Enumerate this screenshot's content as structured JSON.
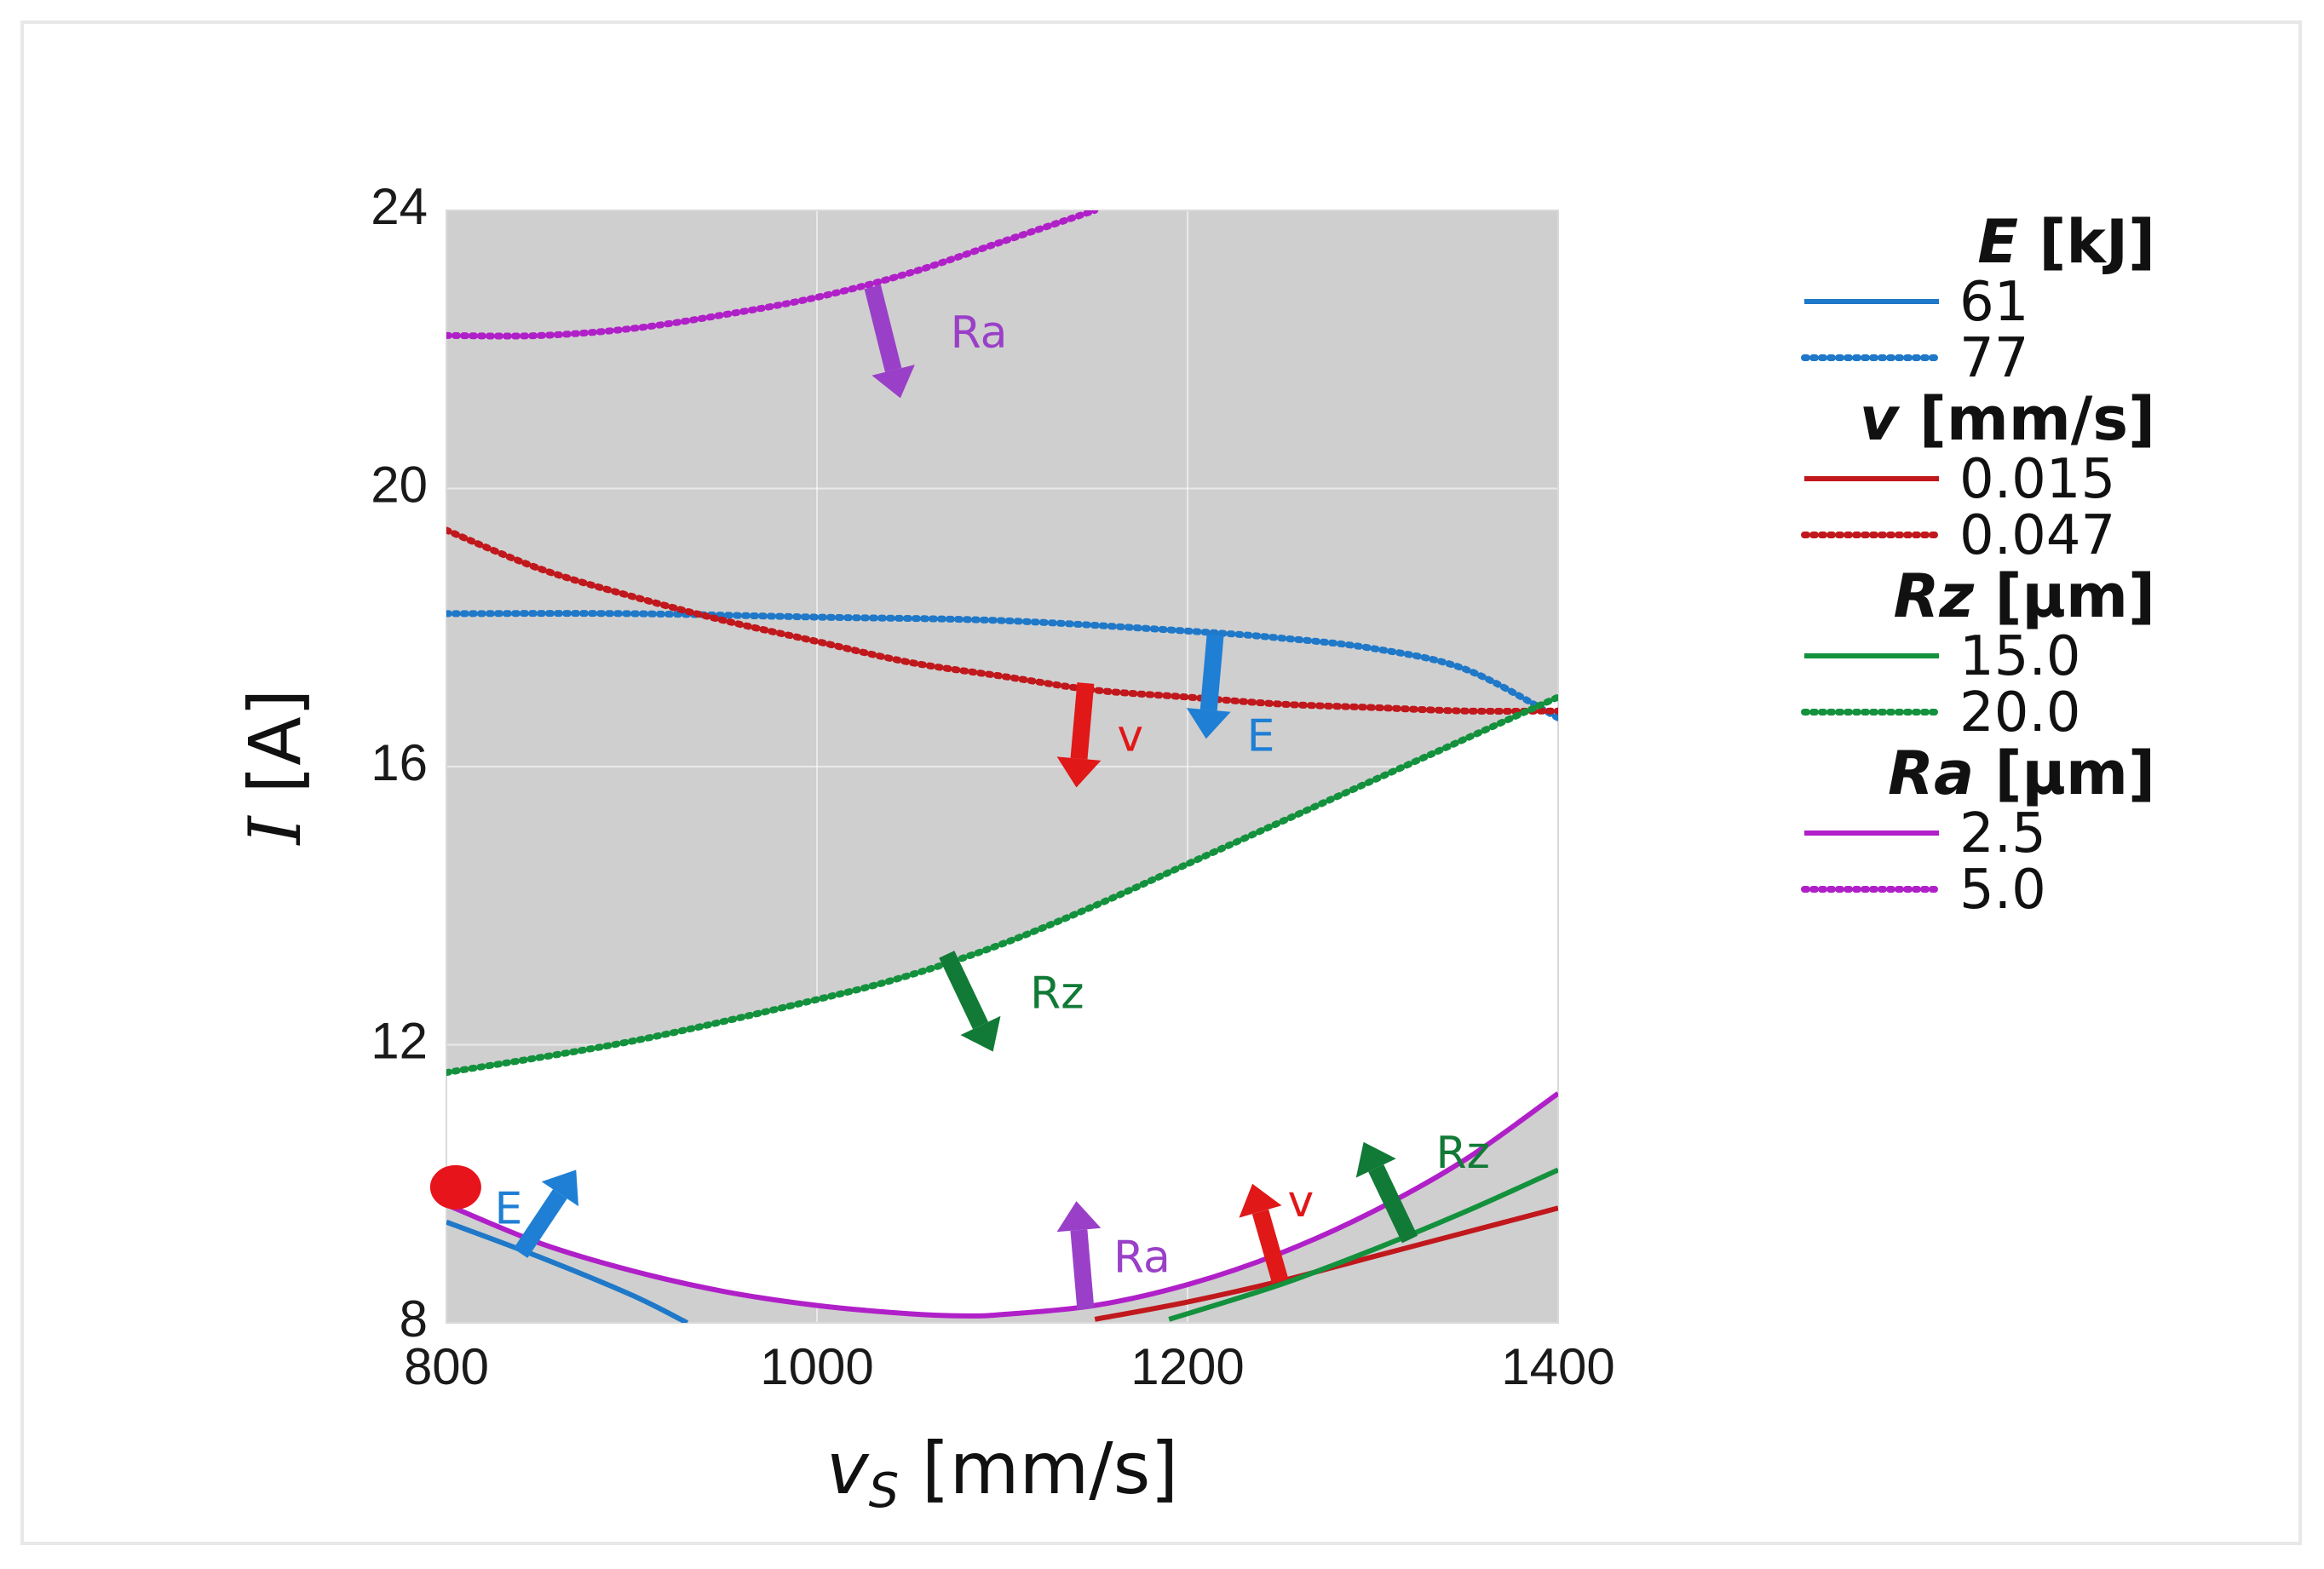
{
  "chart_data": {
    "type": "line",
    "title": "",
    "xlabel": "v",
    "xlabel_sub": "S",
    "xlabel_unit": " [mm/s]",
    "ylabel": "I",
    "ylabel_unit": " [A]",
    "xlim": [
      800,
      1400
    ],
    "ylim": [
      8,
      24
    ],
    "x_ticks": [
      800,
      1000,
      1200,
      1400
    ],
    "y_ticks": [
      8,
      12,
      16,
      20,
      24
    ],
    "grid": true,
    "legend_position": "right",
    "colors": {
      "E": "#1f78c8",
      "v": "#c0181c",
      "Rz": "#13913d",
      "Ra": "#b020c8",
      "shade": "#cfcfcf",
      "marker": "#e8141c",
      "arrow_E": "#1f7fd4",
      "arrow_v": "#e01818",
      "arrow_Rz": "#117a36",
      "arrow_Ra": "#9a40c8"
    },
    "legend": [
      {
        "group": "E",
        "header": "E",
        "unit": " [kJ]",
        "items": [
          {
            "label": "61",
            "style": "solid"
          },
          {
            "label": "77",
            "style": "dotted"
          }
        ]
      },
      {
        "group": "v",
        "header": "v",
        "unit": " [mm/s]",
        "items": [
          {
            "label": "0.015",
            "style": "solid"
          },
          {
            "label": "0.047",
            "style": "dotted"
          }
        ]
      },
      {
        "group": "Rz",
        "header": "Rz",
        "unit": " [µm]",
        "items": [
          {
            "label": "15.0",
            "style": "solid"
          },
          {
            "label": "20.0",
            "style": "dotted"
          }
        ]
      },
      {
        "group": "Ra",
        "header": "Ra",
        "unit": " [µm]",
        "items": [
          {
            "label": "2.5",
            "style": "solid"
          },
          {
            "label": "5.0",
            "style": "dotted"
          }
        ]
      }
    ],
    "series": [
      {
        "name": "E = 61",
        "group": "E",
        "style": "solid",
        "x": [
          800,
          850,
          900,
          930
        ],
        "y": [
          9.45,
          8.95,
          8.4,
          8.0
        ]
      },
      {
        "name": "E = 77",
        "group": "E",
        "style": "dotted",
        "x": [
          800,
          900,
          1000,
          1100,
          1200,
          1250,
          1300,
          1350,
          1400
        ],
        "y": [
          18.2,
          18.2,
          18.15,
          18.1,
          17.95,
          17.85,
          17.7,
          17.4,
          16.7
        ]
      },
      {
        "name": "v = 0.015",
        "group": "v",
        "style": "solid",
        "x": [
          1150,
          1200,
          1250,
          1300,
          1350,
          1400
        ],
        "y": [
          8.05,
          8.3,
          8.6,
          8.95,
          9.3,
          9.65
        ]
      },
      {
        "name": "v = 0.047",
        "group": "v",
        "style": "dotted",
        "x": [
          800,
          850,
          900,
          950,
          1000,
          1050,
          1100,
          1150,
          1200,
          1250,
          1300,
          1350,
          1400
        ],
        "y": [
          19.4,
          18.85,
          18.45,
          18.1,
          17.8,
          17.5,
          17.3,
          17.1,
          17.0,
          16.9,
          16.85,
          16.8,
          16.8
        ]
      },
      {
        "name": "Rz = 15.0",
        "group": "Rz",
        "style": "solid",
        "x": [
          1190,
          1250,
          1300,
          1350,
          1400
        ],
        "y": [
          8.05,
          8.55,
          9.05,
          9.6,
          10.2
        ]
      },
      {
        "name": "Rz = 20.0",
        "group": "Rz",
        "style": "dotted",
        "x": [
          800,
          900,
          1000,
          1050,
          1100,
          1150,
          1200,
          1250,
          1300,
          1350,
          1400
        ],
        "y": [
          11.6,
          12.05,
          12.65,
          13.0,
          13.45,
          14.0,
          14.6,
          15.2,
          15.8,
          16.4,
          17.0
        ]
      },
      {
        "name": "Ra = 2.5",
        "group": "Ra",
        "style": "solid",
        "x": [
          800,
          850,
          900,
          950,
          1000,
          1050,
          1080,
          1100,
          1150,
          1200,
          1250,
          1300,
          1350,
          1400
        ],
        "y": [
          9.7,
          9.15,
          8.75,
          8.45,
          8.25,
          8.13,
          8.1,
          8.12,
          8.25,
          8.55,
          9.0,
          9.6,
          10.35,
          11.3
        ]
      },
      {
        "name": "Ra = 5.0",
        "group": "Ra",
        "style": "dotted",
        "x": [
          800,
          850,
          900,
          950,
          1000,
          1050,
          1100,
          1150
        ],
        "y": [
          22.2,
          22.2,
          22.3,
          22.5,
          22.75,
          23.1,
          23.55,
          24.0
        ]
      }
    ],
    "shaded_regions": [
      {
        "upper": "top",
        "lower": "Rz = 20.0",
        "x": [
          800,
          1400
        ]
      },
      {
        "upper": "Ra = 2.5",
        "lower": "bottom",
        "x": [
          800,
          1400
        ]
      }
    ],
    "annotations": [
      {
        "text": "Ra",
        "group": "Ra",
        "from": [
          1030,
          22.9
        ],
        "to": [
          1045,
          21.3
        ],
        "label_at": [
          1072,
          22.2
        ]
      },
      {
        "text": "v",
        "group": "v",
        "from": [
          1145,
          17.2
        ],
        "to": [
          1140,
          15.7
        ],
        "label_at": [
          1162,
          16.4
        ]
      },
      {
        "text": "E",
        "group": "E",
        "from": [
          1215,
          17.9
        ],
        "to": [
          1210,
          16.4
        ],
        "label_at": [
          1232,
          16.4
        ]
      },
      {
        "text": "Rz",
        "group": "Rz",
        "from": [
          1070,
          13.3
        ],
        "to": [
          1095,
          11.9
        ],
        "label_at": [
          1115,
          12.7
        ]
      },
      {
        "text": "E",
        "group": "E",
        "from": [
          840,
          9.0
        ],
        "to": [
          870,
          10.2
        ],
        "label_at": [
          826,
          9.6
        ]
      },
      {
        "text": "Ra",
        "group": "Ra",
        "from": [
          1145,
          8.2
        ],
        "to": [
          1140,
          9.75
        ],
        "label_at": [
          1160,
          8.9
        ]
      },
      {
        "text": "v",
        "group": "v",
        "from": [
          1250,
          8.6
        ],
        "to": [
          1235,
          10.0
        ],
        "label_at": [
          1254,
          9.7
        ]
      },
      {
        "text": "Rz",
        "group": "Rz",
        "from": [
          1320,
          9.2
        ],
        "to": [
          1295,
          10.6
        ],
        "label_at": [
          1334,
          10.4
        ]
      }
    ],
    "markers": [
      {
        "x": 805,
        "y": 9.95,
        "color": "#e8141c"
      }
    ]
  }
}
